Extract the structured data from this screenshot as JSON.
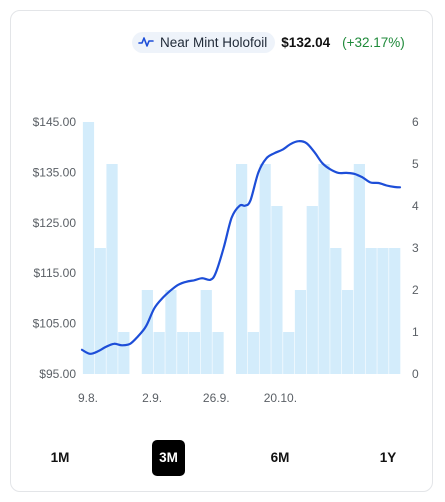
{
  "legend": {
    "series_icon": "line-chart-icon",
    "label": "Near Mint Holofoil",
    "price": "$132.04",
    "change": "(+32.17%)",
    "change_color": "#1f8a3a"
  },
  "chart_data": {
    "type": "line+bar",
    "x_ticks": [
      "9.8.",
      "2.9.",
      "26.9.",
      "20.10."
    ],
    "y_left": {
      "ticks": [
        "$145.00",
        "$135.00",
        "$125.00",
        "$115.00",
        "$105.00",
        "$95.00"
      ],
      "range": [
        95,
        145
      ]
    },
    "y_right": {
      "ticks": [
        "6",
        "5",
        "4",
        "3",
        "2",
        "1",
        "0"
      ],
      "range": [
        0,
        6
      ]
    },
    "line_color": "#1d4ed8",
    "bar_color": "#d3ecfb",
    "bars": [
      6,
      3,
      5,
      1,
      0,
      2,
      1,
      2,
      1,
      1,
      2,
      1,
      0,
      5,
      1,
      5,
      4,
      1,
      2,
      4,
      5,
      3,
      2,
      5,
      3,
      3,
      3
    ],
    "price_series": [
      [
        0,
        99.8
      ],
      [
        3,
        99.0
      ],
      [
        6,
        99.5
      ],
      [
        9,
        100.4
      ],
      [
        12,
        101.0
      ],
      [
        15,
        100.7
      ],
      [
        18,
        101.0
      ],
      [
        21,
        102.5
      ],
      [
        24,
        104.5
      ],
      [
        27,
        108.0
      ],
      [
        30,
        110.0
      ],
      [
        33,
        111.5
      ],
      [
        36,
        112.7
      ],
      [
        39,
        113.3
      ],
      [
        42,
        113.6
      ],
      [
        45,
        114.0
      ],
      [
        48,
        113.7
      ],
      [
        50,
        115.0
      ],
      [
        53,
        120.0
      ],
      [
        56,
        126.0
      ],
      [
        59,
        128.4
      ],
      [
        61,
        128.4
      ],
      [
        63,
        129.4
      ],
      [
        66,
        135.0
      ],
      [
        69,
        137.8
      ],
      [
        72,
        138.8
      ],
      [
        75,
        139.5
      ],
      [
        78,
        140.6
      ],
      [
        81,
        141.2
      ],
      [
        84,
        140.8
      ],
      [
        87,
        139.0
      ],
      [
        90,
        136.8
      ],
      [
        93,
        135.6
      ],
      [
        96,
        134.9
      ],
      [
        99,
        134.9
      ],
      [
        102,
        134.7
      ],
      [
        105,
        134.0
      ],
      [
        108,
        133.0
      ],
      [
        111,
        132.9
      ],
      [
        114,
        132.4
      ],
      [
        117,
        132.1
      ],
      [
        119,
        132.04
      ]
    ],
    "series": [
      {
        "name": "Near Mint Holofoil",
        "values_ref": "price_series"
      }
    ]
  },
  "ranges": {
    "items": [
      {
        "label": "1M",
        "active": false
      },
      {
        "label": "3M",
        "active": true
      },
      {
        "label": "6M",
        "active": false
      },
      {
        "label": "1Y",
        "active": false
      }
    ]
  }
}
